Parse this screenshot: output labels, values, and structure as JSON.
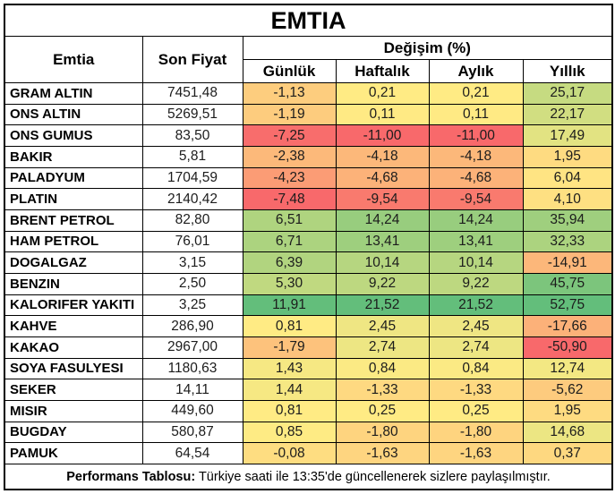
{
  "chart_data": {
    "type": "table",
    "title": "EMTIA",
    "header": {
      "commodity": "Emtia",
      "last_price": "Son Fiyat",
      "change_group": "Değişim (%)",
      "periods": [
        "Günlük",
        "Haftalık",
        "Aylık",
        "Yıllık"
      ]
    },
    "rows": [
      {
        "name": "GRAM ALTIN",
        "price": "7451,48",
        "changes": [
          "-1,13",
          "0,21",
          "0,21",
          "25,17"
        ]
      },
      {
        "name": "ONS ALTIN",
        "price": "5269,51",
        "changes": [
          "-1,19",
          "0,11",
          "0,11",
          "22,17"
        ]
      },
      {
        "name": "ONS GUMUS",
        "price": "83,50",
        "changes": [
          "-7,25",
          "-11,00",
          "-11,00",
          "17,49"
        ]
      },
      {
        "name": "BAKIR",
        "price": "5,81",
        "changes": [
          "-2,38",
          "-4,18",
          "-4,18",
          "1,95"
        ]
      },
      {
        "name": "PALADYUM",
        "price": "1704,59",
        "changes": [
          "-4,23",
          "-4,68",
          "-4,68",
          "6,04"
        ]
      },
      {
        "name": "PLATIN",
        "price": "2140,42",
        "changes": [
          "-7,48",
          "-9,54",
          "-9,54",
          "4,10"
        ]
      },
      {
        "name": "BRENT PETROL",
        "price": "82,80",
        "changes": [
          "6,51",
          "14,24",
          "14,24",
          "35,94"
        ]
      },
      {
        "name": "HAM PETROL",
        "price": "76,01",
        "changes": [
          "6,71",
          "13,41",
          "13,41",
          "32,33"
        ]
      },
      {
        "name": "DOGALGAZ",
        "price": "3,15",
        "changes": [
          "6,39",
          "10,14",
          "10,14",
          "-14,91"
        ]
      },
      {
        "name": "BENZIN",
        "price": "2,50",
        "changes": [
          "5,30",
          "9,22",
          "9,22",
          "45,75"
        ]
      },
      {
        "name": "KALORIFER YAKITI",
        "price": "3,25",
        "changes": [
          "11,91",
          "21,52",
          "21,52",
          "52,75"
        ]
      },
      {
        "name": "KAHVE",
        "price": "286,90",
        "changes": [
          "0,81",
          "2,45",
          "2,45",
          "-17,66"
        ]
      },
      {
        "name": "KAKAO",
        "price": "2967,00",
        "changes": [
          "-1,79",
          "2,74",
          "2,74",
          "-50,90"
        ]
      },
      {
        "name": "SOYA FASULYESI",
        "price": "1180,63",
        "changes": [
          "1,43",
          "0,84",
          "0,84",
          "12,74"
        ]
      },
      {
        "name": "SEKER",
        "price": "14,11",
        "changes": [
          "1,44",
          "-1,33",
          "-1,33",
          "-5,62"
        ]
      },
      {
        "name": "MISIR",
        "price": "449,60",
        "changes": [
          "0,81",
          "0,25",
          "0,25",
          "1,95"
        ]
      },
      {
        "name": "BUGDAY",
        "price": "580,87",
        "changes": [
          "0,85",
          "-1,80",
          "-1,80",
          "14,68"
        ]
      },
      {
        "name": "PAMUK",
        "price": "64,54",
        "changes": [
          "-0,08",
          "-1,63",
          "-1,63",
          "0,37"
        ]
      }
    ],
    "color_scale": {
      "min_color": "#F8696B",
      "mid_color": "#FFEB84",
      "max_color": "#63BE7B",
      "scope": "per-column",
      "midpoint": "50th-percentile"
    },
    "footer": {
      "label": "Performans Tablosu:",
      "text": " Türkiye saati ile 13:35'de güncellenerek sizlere paylaşılmıştır."
    }
  }
}
